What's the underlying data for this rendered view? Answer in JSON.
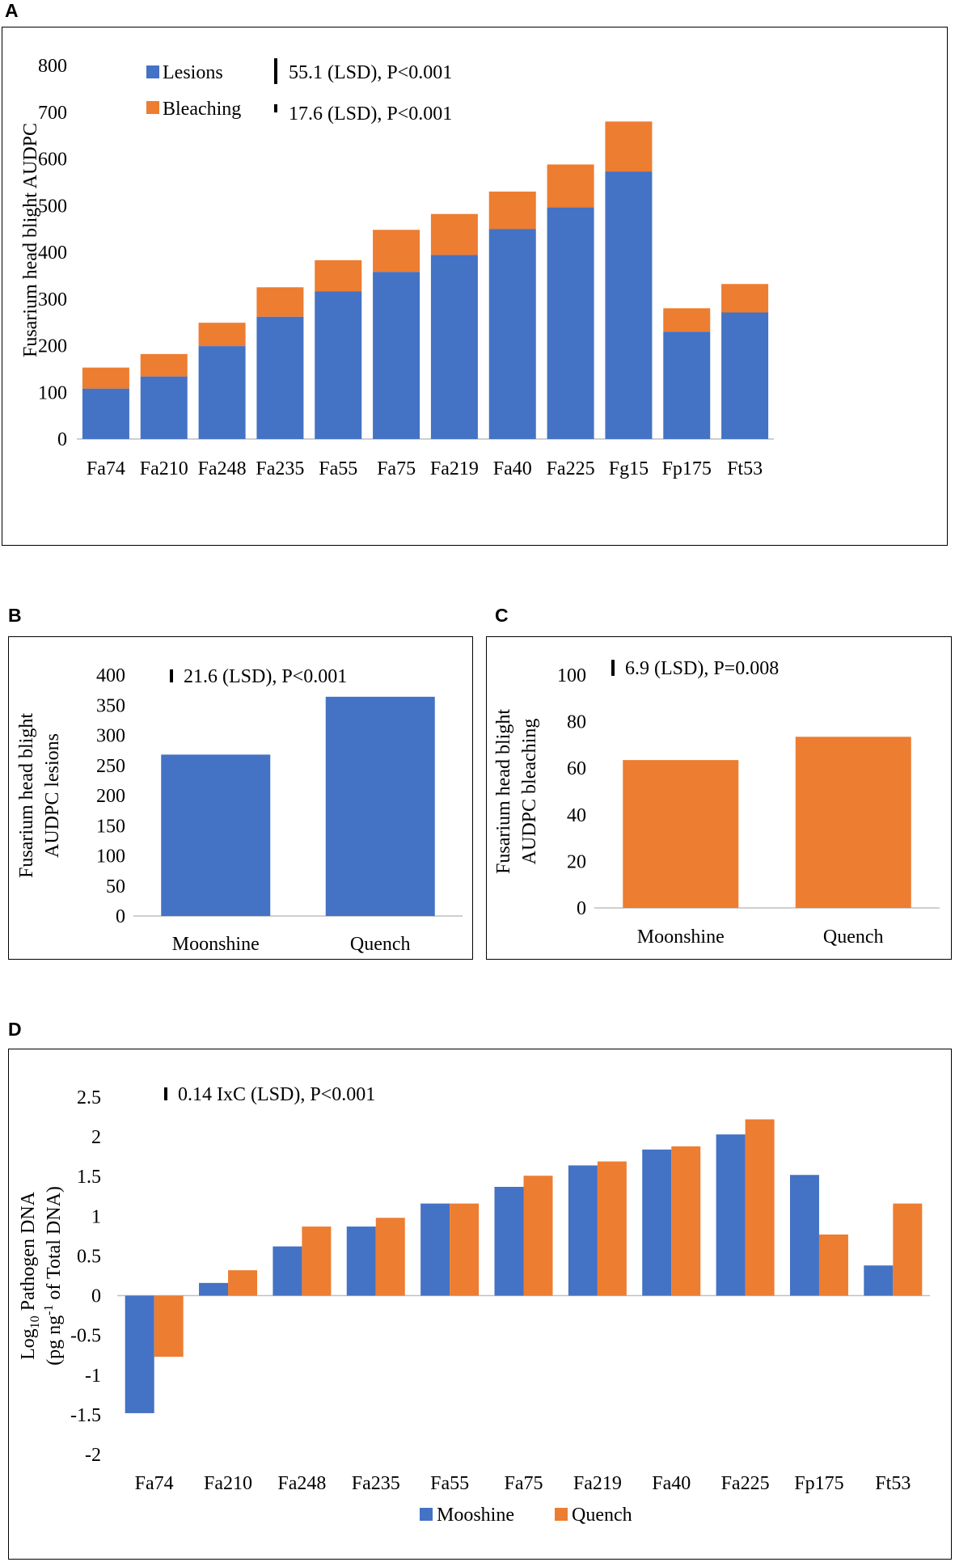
{
  "panels": {
    "a": "A",
    "b": "B",
    "c": "C",
    "d": "D"
  },
  "colors": {
    "blue": "#4472C4",
    "orange": "#ED7D31"
  },
  "chart_data": [
    {
      "id": "A",
      "type": "bar",
      "stacked": true,
      "categories": [
        "Fa74",
        "Fa210",
        "Fa248",
        "Fa235",
        "Fa55",
        "Fa75",
        "Fa219",
        "Fa40",
        "Fa225",
        "Fg15",
        "Fp175",
        "Ft53"
      ],
      "series": [
        {
          "name": "Lesions",
          "color": "#4472C4",
          "values": [
            108,
            134,
            199,
            262,
            316,
            358,
            394,
            450,
            496,
            573,
            230,
            271
          ]
        },
        {
          "name": "Bleaching",
          "color": "#ED7D31",
          "values": [
            45,
            48,
            50,
            63,
            67,
            90,
            88,
            80,
            92,
            107,
            50,
            61
          ]
        }
      ],
      "title": "",
      "xlabel": "",
      "ylabel": "Fusarium head blight AUDPC",
      "ylim": [
        0,
        800
      ],
      "yticks": [
        0,
        100,
        200,
        300,
        400,
        500,
        600,
        700,
        800
      ],
      "annotations": [
        "55.1 (LSD), P<0.001",
        "17.6 (LSD), P<0.001"
      ],
      "lsd_values": [
        55.1,
        17.6
      ],
      "legend_position": "top-left"
    },
    {
      "id": "B",
      "type": "bar",
      "categories": [
        "Moonshine",
        "Quench"
      ],
      "values": [
        268,
        364
      ],
      "color": "#4472C4",
      "ylabel_lines": [
        "Fusarium head blight",
        "AUDPC lesions"
      ],
      "ylim": [
        0,
        400
      ],
      "yticks": [
        0,
        50,
        100,
        150,
        200,
        250,
        300,
        350,
        400
      ],
      "annotation": "21.6 (LSD), P<0.001",
      "lsd": 21.6
    },
    {
      "id": "C",
      "type": "bar",
      "categories": [
        "Moonshine",
        "Quench"
      ],
      "values": [
        63.5,
        73.5
      ],
      "color": "#ED7D31",
      "ylabel_lines": [
        "Fusarium head blight",
        "AUDPC bleaching"
      ],
      "ylim": [
        0,
        100
      ],
      "yticks": [
        0,
        20,
        40,
        60,
        80,
        100
      ],
      "annotation": "6.9 (LSD), P=0.008",
      "lsd": 6.9
    },
    {
      "id": "D",
      "type": "bar",
      "grouped": true,
      "categories": [
        "Fa74",
        "Fa210",
        "Fa248",
        "Fa235",
        "Fa55",
        "Fa75",
        "Fa219",
        "Fa40",
        "Fa225",
        "Fp175",
        "Ft53"
      ],
      "series": [
        {
          "name": "Mooshine",
          "color": "#4472C4",
          "values": [
            -1.48,
            0.16,
            0.62,
            0.87,
            1.16,
            1.37,
            1.64,
            1.84,
            2.03,
            1.52,
            0.38
          ]
        },
        {
          "name": "Quench",
          "color": "#ED7D31",
          "values": [
            -0.77,
            0.32,
            0.87,
            0.98,
            1.16,
            1.51,
            1.69,
            1.88,
            2.22,
            0.77,
            1.16
          ]
        }
      ],
      "ylabel_lines": [
        "Log10 Pathogen DNA",
        "(pg ng-1 of Total DNA)"
      ],
      "ylim": [
        -2,
        2.5
      ],
      "yticks": [
        "-2",
        "-1.5",
        "-1",
        "-0.5",
        "0",
        "0.5",
        "1",
        "1.5",
        "2",
        "2.5"
      ],
      "annotation": "0.14 IxC (LSD), P<0.001",
      "lsd": 0.14,
      "legend_position": "bottom-center"
    }
  ]
}
